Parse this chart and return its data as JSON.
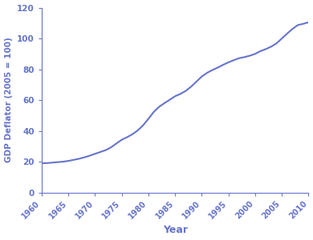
{
  "title": "",
  "xlabel": "Year",
  "ylabel": "GDP Deflator (2005 = 100)",
  "line_color": "#6674cc",
  "axis_color": "#6674cc",
  "background_color": "#ffffff",
  "xlim": [
    1960,
    2010
  ],
  "ylim": [
    0,
    120
  ],
  "xticks": [
    1960,
    1965,
    1970,
    1975,
    1980,
    1985,
    1990,
    1995,
    2000,
    2005,
    2010
  ],
  "yticks": [
    0,
    20,
    40,
    60,
    80,
    100,
    120
  ],
  "years": [
    1960,
    1961,
    1962,
    1963,
    1964,
    1965,
    1966,
    1967,
    1968,
    1969,
    1970,
    1971,
    1972,
    1973,
    1974,
    1975,
    1976,
    1977,
    1978,
    1979,
    1980,
    1981,
    1982,
    1983,
    1984,
    1985,
    1986,
    1987,
    1988,
    1989,
    1990,
    1991,
    1992,
    1993,
    1994,
    1995,
    1996,
    1997,
    1998,
    1999,
    2000,
    2001,
    2002,
    2003,
    2004,
    2005,
    2006,
    2007,
    2008,
    2009,
    2010
  ],
  "values": [
    19.0,
    19.1,
    19.4,
    19.7,
    20.0,
    20.5,
    21.2,
    21.9,
    22.8,
    23.9,
    25.1,
    26.3,
    27.5,
    29.3,
    31.8,
    34.2,
    35.9,
    37.8,
    40.3,
    43.6,
    47.8,
    52.3,
    55.6,
    58.0,
    60.2,
    62.5,
    64.0,
    66.0,
    68.7,
    72.0,
    75.3,
    77.7,
    79.5,
    81.1,
    82.9,
    84.5,
    85.9,
    87.2,
    87.9,
    88.8,
    90.0,
    91.8,
    93.1,
    94.7,
    96.8,
    100.0,
    103.2,
    106.2,
    108.7,
    109.5,
    110.5
  ]
}
